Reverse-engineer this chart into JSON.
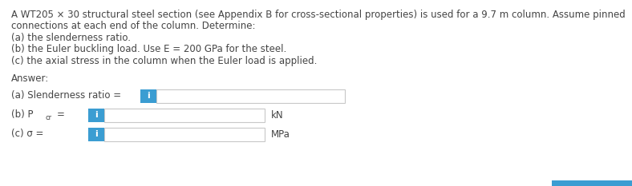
{
  "title_text_line1": "A WT205 × 30 structural steel section (see Appendix B for cross-sectional properties) is used for a 9.7 m column. Assume pinned",
  "title_text_line2": "connections at each end of the column. Determine:",
  "title_text_line3": "(a) the slenderness ratio.",
  "title_text_line4": "(b) the Euler buckling load. Use E = 200 GPa for the steel.",
  "title_text_line5": "(c) the axial stress in the column when the Euler load is applied.",
  "answer_label": "Answer:",
  "row_a_label": "(a) Slenderness ratio =",
  "row_b_label_main": "(b) P",
  "row_b_sub": "cr",
  "row_b_equals": " =",
  "row_b_unit": "kN",
  "row_c_label": "(c) σ =",
  "row_c_unit": "MPa",
  "button_color": "#3b9dd2",
  "button_text": "i",
  "button_text_color": "#ffffff",
  "box_edge_color": "#c8c8c8",
  "bg_color": "#ffffff",
  "text_color": "#444444",
  "font_size_body": 8.5,
  "font_size_rows": 8.5,
  "font_size_button": 8,
  "bottom_bar_color": "#3b9dd2"
}
